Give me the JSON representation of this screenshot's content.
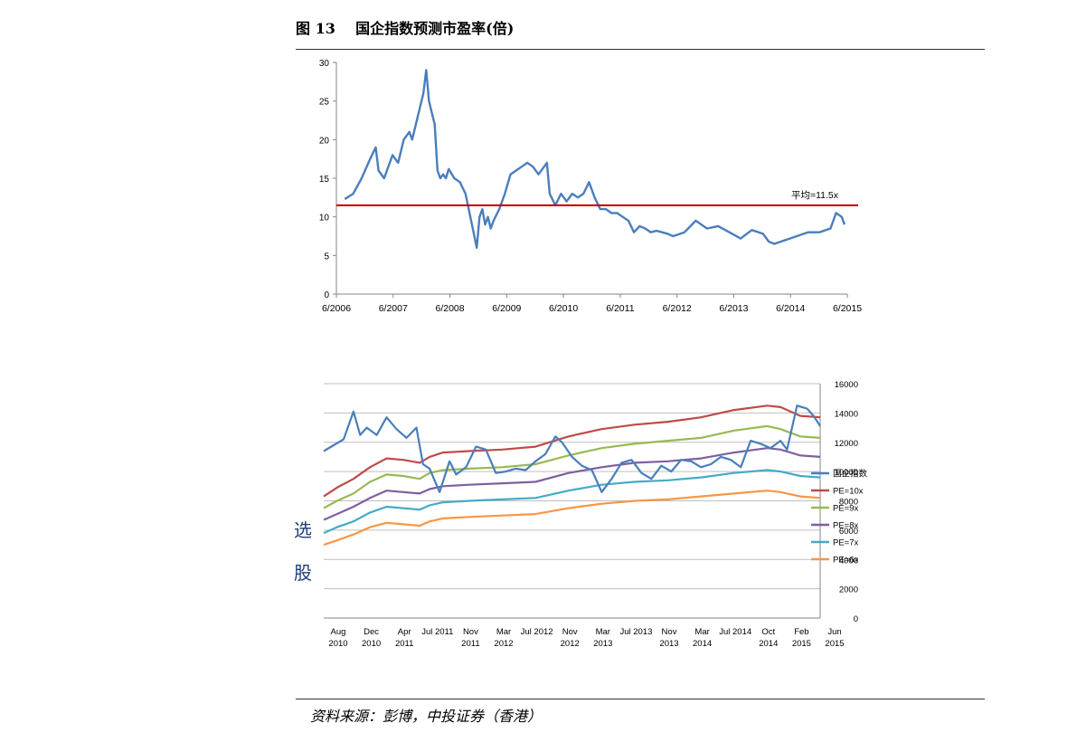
{
  "figure": {
    "label": "图 13",
    "title": "国企指数预测市盈率(倍)"
  },
  "side_text": [
    "选",
    "股"
  ],
  "source": "资料来源：彭博，中投证券（香港）",
  "colors": {
    "index": "#4a7ebb",
    "avg": "#c00000",
    "pe10": "#be4b48",
    "pe9": "#98b954",
    "pe8": "#7d60a0",
    "pe7": "#46aac5",
    "pe6": "#f79646",
    "grid": "#bfbfbf",
    "axis": "#868686"
  },
  "chart_data": [
    {
      "type": "line",
      "title": "",
      "x_ticks": [
        "6/2006",
        "6/2007",
        "6/2008",
        "6/2009",
        "6/2010",
        "6/2011",
        "6/2012",
        "6/2013",
        "6/2014",
        "6/2015"
      ],
      "xlim": [
        2006.0,
        2015.1
      ],
      "y_ticks": [
        "0",
        "5",
        "10",
        "15",
        "20",
        "25",
        "30"
      ],
      "ylim": [
        0,
        30
      ],
      "grid": false,
      "average_line": {
        "value": 11.5,
        "label": "平均=11.5x"
      },
      "series": [
        {
          "name": "",
          "x": [
            2006.15,
            2006.3,
            2006.45,
            2006.6,
            2006.7,
            2006.75,
            2006.85,
            2007.0,
            2007.1,
            2007.2,
            2007.3,
            2007.35,
            2007.45,
            2007.55,
            2007.6,
            2007.65,
            2007.7,
            2007.75,
            2007.8,
            2007.85,
            2007.9,
            2007.95,
            2008.0,
            2008.1,
            2008.2,
            2008.3,
            2008.4,
            2008.5,
            2008.55,
            2008.6,
            2008.65,
            2008.7,
            2008.75,
            2008.8,
            2008.9,
            2009.0,
            2009.1,
            2009.2,
            2009.3,
            2009.4,
            2009.5,
            2009.6,
            2009.7,
            2009.75,
            2009.8,
            2009.9,
            2010.0,
            2010.1,
            2010.2,
            2010.3,
            2010.4,
            2010.5,
            2010.6,
            2010.7,
            2010.8,
            2010.9,
            2011.0,
            2011.1,
            2011.2,
            2011.3,
            2011.4,
            2011.5,
            2011.6,
            2011.7,
            2011.8,
            2011.9,
            2012.0,
            2012.2,
            2012.4,
            2012.6,
            2012.8,
            2013.0,
            2013.2,
            2013.4,
            2013.6,
            2013.7,
            2013.8,
            2014.0,
            2014.2,
            2014.4,
            2014.6,
            2014.8,
            2014.9,
            2015.0,
            2015.05
          ],
          "y": [
            12.3,
            13.0,
            15.0,
            17.5,
            19.0,
            16.0,
            15.0,
            18.0,
            17.0,
            20.0,
            21.0,
            20.0,
            23.0,
            26.0,
            29.0,
            25.0,
            23.5,
            22.0,
            16.0,
            15.0,
            15.5,
            15.0,
            16.2,
            15.0,
            14.5,
            13.0,
            9.5,
            6.0,
            10.0,
            11.0,
            9.0,
            10.0,
            8.5,
            9.5,
            11.0,
            13.0,
            15.5,
            16.0,
            16.5,
            17.0,
            16.5,
            15.5,
            16.5,
            17.0,
            13.0,
            11.5,
            13.0,
            12.0,
            13.0,
            12.5,
            13.0,
            14.5,
            12.5,
            11.0,
            11.0,
            10.5,
            10.5,
            10.0,
            9.5,
            8.0,
            8.8,
            8.5,
            8.0,
            8.2,
            8.0,
            7.8,
            7.5,
            8.0,
            9.5,
            8.5,
            8.8,
            8.0,
            7.2,
            8.3,
            7.8,
            6.8,
            6.5,
            7.0,
            7.5,
            8.0,
            8.0,
            8.5,
            10.5,
            10.0,
            9.0
          ]
        }
      ]
    },
    {
      "type": "line",
      "title": "",
      "x_ticks": [
        [
          "Aug",
          "2010"
        ],
        [
          "Dec",
          "2010"
        ],
        [
          "Apr",
          "2011"
        ],
        [
          "Jul 2011",
          ""
        ],
        [
          "Nov",
          "2011"
        ],
        [
          "Mar",
          "2012"
        ],
        [
          "Jul 2012",
          ""
        ],
        [
          "Nov",
          "2012"
        ],
        [
          "Mar",
          "2013"
        ],
        [
          "Jul 2013",
          ""
        ],
        [
          "Nov",
          "2013"
        ],
        [
          "Mar",
          "2014"
        ],
        [
          "Jul 2014",
          ""
        ],
        [
          "Oct",
          "2014"
        ],
        [
          "Feb",
          "2015"
        ],
        [
          "Jun",
          "2015"
        ]
      ],
      "xlim": [
        0,
        15
      ],
      "y_ticks": [
        "0",
        "2000",
        "4000",
        "6000",
        "8000",
        "10000",
        "12000",
        "14000",
        "16000"
      ],
      "ylim": [
        0,
        16000
      ],
      "grid": true,
      "legend_position": "right",
      "series": [
        {
          "name": "国企指数",
          "color_key": "index",
          "x": [
            0,
            0.3,
            0.6,
            0.9,
            1.1,
            1.3,
            1.6,
            1.9,
            2.2,
            2.5,
            2.8,
            3.0,
            3.2,
            3.5,
            3.8,
            4.0,
            4.3,
            4.6,
            4.9,
            5.2,
            5.5,
            5.8,
            6.1,
            6.4,
            6.7,
            7.0,
            7.2,
            7.5,
            7.8,
            8.1,
            8.4,
            8.7,
            9.0,
            9.3,
            9.6,
            9.9,
            10.2,
            10.5,
            10.8,
            11.1,
            11.4,
            11.7,
            12.0,
            12.3,
            12.6,
            12.9,
            13.2,
            13.5,
            13.8,
            14.0,
            14.3,
            14.6,
            14.8,
            15.0
          ],
          "y": [
            11400,
            11800,
            12200,
            14100,
            12500,
            13000,
            12500,
            13700,
            12900,
            12300,
            13000,
            10500,
            10200,
            8600,
            10700,
            9800,
            10300,
            11700,
            11500,
            9900,
            10000,
            10200,
            10100,
            10700,
            11200,
            12400,
            12000,
            11000,
            10400,
            10100,
            8600,
            9500,
            10600,
            10800,
            9900,
            9500,
            10400,
            10000,
            10800,
            10700,
            10300,
            10500,
            11000,
            10800,
            10300,
            12100,
            11900,
            11600,
            12100,
            11500,
            14500,
            14300,
            13800,
            13100
          ]
        },
        {
          "name": "PE=10x",
          "color_key": "pe10",
          "x": [
            0,
            0.4,
            0.9,
            1.4,
            1.9,
            2.4,
            2.9,
            3.2,
            3.6,
            4.4,
            5.4,
            6.4,
            7.4,
            8.4,
            9.4,
            10.4,
            11.4,
            12.4,
            13.4,
            13.8,
            14.4,
            15.0
          ],
          "y": [
            8300,
            8900,
            9500,
            10300,
            10900,
            10800,
            10600,
            11000,
            11300,
            11400,
            11500,
            11700,
            12400,
            12900,
            13200,
            13400,
            13700,
            14200,
            14500,
            14400,
            13800,
            13700
          ]
        },
        {
          "name": "PE=9x",
          "color_key": "pe9",
          "x": [
            0,
            0.4,
            0.9,
            1.4,
            1.9,
            2.4,
            2.9,
            3.2,
            3.6,
            4.4,
            5.4,
            6.4,
            7.4,
            8.4,
            9.4,
            10.4,
            11.4,
            12.4,
            13.4,
            13.8,
            14.4,
            15.0
          ],
          "y": [
            7500,
            8000,
            8500,
            9300,
            9800,
            9700,
            9500,
            9900,
            10100,
            10200,
            10300,
            10500,
            11100,
            11600,
            11900,
            12100,
            12300,
            12800,
            13100,
            12900,
            12400,
            12300
          ]
        },
        {
          "name": "PE=8x",
          "color_key": "pe8",
          "x": [
            0,
            0.4,
            0.9,
            1.4,
            1.9,
            2.4,
            2.9,
            3.2,
            3.6,
            4.4,
            5.4,
            6.4,
            7.4,
            8.4,
            9.4,
            10.4,
            11.4,
            12.4,
            13.4,
            13.8,
            14.4,
            15.0
          ],
          "y": [
            6700,
            7100,
            7600,
            8200,
            8700,
            8600,
            8500,
            8800,
            9000,
            9100,
            9200,
            9300,
            9900,
            10300,
            10600,
            10700,
            10900,
            11300,
            11600,
            11500,
            11100,
            11000
          ]
        },
        {
          "name": "PE=7x",
          "color_key": "pe7",
          "x": [
            0,
            0.4,
            0.9,
            1.4,
            1.9,
            2.4,
            2.9,
            3.2,
            3.6,
            4.4,
            5.4,
            6.4,
            7.4,
            8.4,
            9.4,
            10.4,
            11.4,
            12.4,
            13.4,
            13.8,
            14.4,
            15.0
          ],
          "y": [
            5800,
            6200,
            6600,
            7200,
            7600,
            7500,
            7400,
            7700,
            7900,
            8000,
            8100,
            8200,
            8700,
            9100,
            9300,
            9400,
            9600,
            9900,
            10100,
            10000,
            9700,
            9600
          ]
        },
        {
          "name": "PE=6x",
          "color_key": "pe6",
          "x": [
            0,
            0.4,
            0.9,
            1.4,
            1.9,
            2.4,
            2.9,
            3.2,
            3.6,
            4.4,
            5.4,
            6.4,
            7.4,
            8.4,
            9.4,
            10.4,
            11.4,
            12.4,
            13.4,
            13.8,
            14.4,
            15.0
          ],
          "y": [
            5000,
            5300,
            5700,
            6200,
            6500,
            6400,
            6300,
            6600,
            6800,
            6900,
            7000,
            7100,
            7500,
            7800,
            8000,
            8100,
            8300,
            8500,
            8700,
            8600,
            8300,
            8200
          ]
        }
      ]
    }
  ]
}
